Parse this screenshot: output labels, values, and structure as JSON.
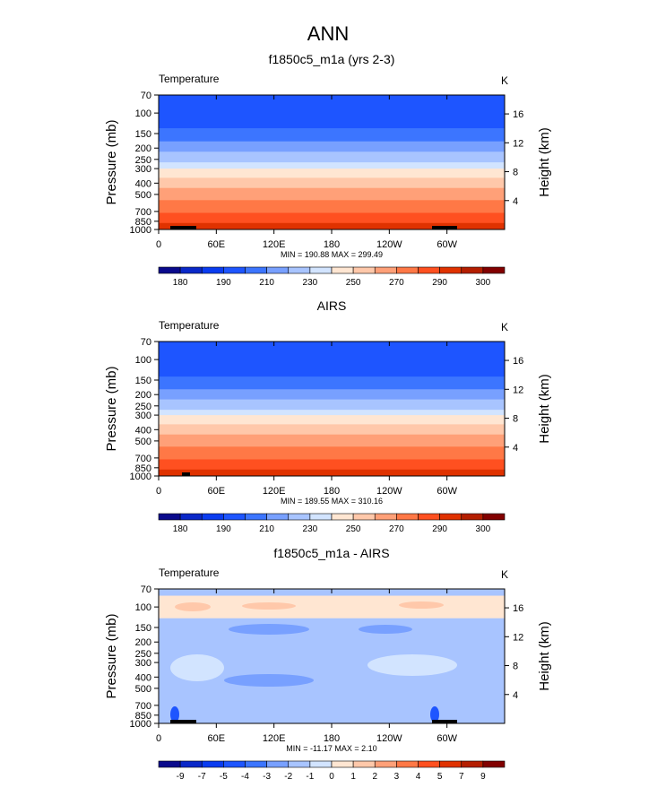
{
  "chart_data": {
    "type": "heatmap",
    "title": "ANN",
    "colors": [
      "#0a0a8c",
      "#0a28c8",
      "#0a3cf0",
      "#1e55ff",
      "#3c75ff",
      "#78a0ff",
      "#a8c4ff",
      "#d2e4ff",
      "#ffe6d2",
      "#ffc8aa",
      "#ffa078",
      "#ff7846",
      "#ff5020",
      "#e03200",
      "#b41e00",
      "#820000"
    ],
    "y_left_label": "Pressure (mb)",
    "y_right_label": "Height (km)",
    "y_ticks": [
      70,
      100,
      150,
      200,
      250,
      300,
      400,
      500,
      700,
      850,
      1000
    ],
    "y_range_mb": [
      70,
      1000
    ],
    "height_ticks_km": [
      4,
      8,
      12,
      16
    ],
    "x_ticks": [
      "0",
      "60E",
      "120E",
      "180",
      "120W",
      "60W"
    ],
    "x_tick_lon": [
      0,
      60,
      120,
      180,
      240,
      300
    ],
    "x_range_lon": [
      0,
      360
    ],
    "panels": [
      {
        "title": "f1850c5_m1a (yrs 2-3)",
        "variable": "Temperature",
        "units": "K",
        "minmax": "MIN = 190.88  MAX = 299.49",
        "colorbar_labels": [
          "180",
          "",
          "190",
          "",
          "210",
          "",
          "230",
          "",
          "250",
          "",
          "270",
          "",
          "290",
          "",
          "300"
        ],
        "bands_mb": [
          [
            70,
            135,
            3
          ],
          [
            135,
            175,
            4
          ],
          [
            175,
            215,
            5
          ],
          [
            215,
            265,
            6
          ],
          [
            265,
            300,
            7
          ],
          [
            300,
            360,
            8
          ],
          [
            360,
            440,
            9
          ],
          [
            440,
            560,
            10
          ],
          [
            560,
            720,
            11
          ],
          [
            720,
            880,
            12
          ],
          [
            880,
            1000,
            13
          ]
        ]
      },
      {
        "title": "AIRS",
        "variable": "Temperature",
        "units": "K",
        "minmax": "MIN = 189.55  MAX = 310.16",
        "colorbar_labels": [
          "180",
          "",
          "190",
          "",
          "210",
          "",
          "230",
          "",
          "250",
          "",
          "270",
          "",
          "290",
          "",
          "300"
        ],
        "bands_mb": [
          [
            70,
            140,
            3
          ],
          [
            140,
            180,
            4
          ],
          [
            180,
            220,
            5
          ],
          [
            220,
            270,
            6
          ],
          [
            270,
            300,
            7
          ],
          [
            300,
            360,
            8
          ],
          [
            360,
            440,
            9
          ],
          [
            440,
            560,
            10
          ],
          [
            560,
            720,
            11
          ],
          [
            720,
            880,
            12
          ],
          [
            880,
            1000,
            13
          ]
        ]
      },
      {
        "title": "f1850c5_m1a - AIRS",
        "variable": "Temperature",
        "units": "K",
        "minmax": "MIN = -11.17  MAX =   2.10",
        "colorbar_labels": [
          "-9",
          "-7",
          "-5",
          "-4",
          "-3",
          "-2",
          "-1",
          "0",
          "1",
          "2",
          "3",
          "4",
          "5",
          "7",
          "9"
        ],
        "bands_mb": [
          [
            70,
            80,
            6
          ],
          [
            80,
            125,
            8
          ],
          [
            125,
            1000,
            6
          ]
        ]
      }
    ]
  }
}
